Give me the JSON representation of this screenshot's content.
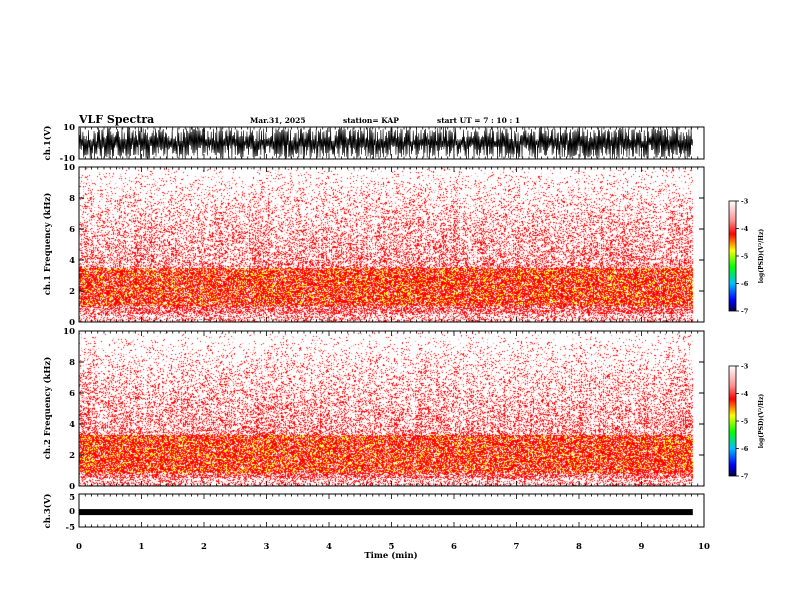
{
  "header": {
    "title": "VLF Spectra",
    "date": "Mar.31, 2025",
    "station": "station= KAP",
    "start": "start  UT =   7 : 10 : 1"
  },
  "chart_data": [
    {
      "type": "line",
      "name": "waveform-ch1",
      "ylabel": "ch.1(V)",
      "ylim": [
        -10,
        10
      ],
      "yticks": [
        10,
        -10
      ],
      "xlim": [
        0,
        10
      ],
      "note_values": "dense waveform, amplitude frequently reaching about +/-10 V"
    },
    {
      "type": "heatmap",
      "name": "spectrogram-ch1",
      "ylabel": "ch.1 Frequency (kHz)",
      "ylim": [
        0,
        10
      ],
      "yticks": [
        0,
        2,
        4,
        6,
        8,
        10
      ],
      "xlim": [
        0,
        10
      ],
      "band_kHz": [
        1.0,
        3.5
      ],
      "colorbar": {
        "label": "log(PSD)(V²/Hz)",
        "ticks": [
          -3,
          -4,
          -5,
          -6,
          -7
        ],
        "range": [
          -7,
          -3
        ]
      }
    },
    {
      "type": "heatmap",
      "name": "spectrogram-ch2",
      "ylabel": "ch.2 Frequency (kHz)",
      "ylim": [
        0,
        10
      ],
      "yticks": [
        0,
        2,
        4,
        6,
        8,
        10
      ],
      "xlim": [
        0,
        10
      ],
      "band_kHz": [
        0.8,
        3.3
      ],
      "colorbar": {
        "label": "log(PSD)(V²/Hz)",
        "ticks": [
          -3,
          -4,
          -5,
          -6,
          -7
        ],
        "range": [
          -7,
          -3
        ]
      }
    },
    {
      "type": "line",
      "name": "waveform-ch3",
      "ylabel": "ch.3(V)",
      "ylim": [
        -5,
        5
      ],
      "yticks": [
        5,
        0,
        -5
      ],
      "xlim": [
        0,
        10
      ],
      "level": -0.5
    }
  ],
  "xaxis": {
    "label": "Time (min)",
    "ticks": [
      0,
      1,
      2,
      3,
      4,
      5,
      6,
      7,
      8,
      9,
      10
    ]
  },
  "colors": {
    "low": "#ffffff",
    "mid": "#ff0000",
    "high": "#ffff00"
  }
}
